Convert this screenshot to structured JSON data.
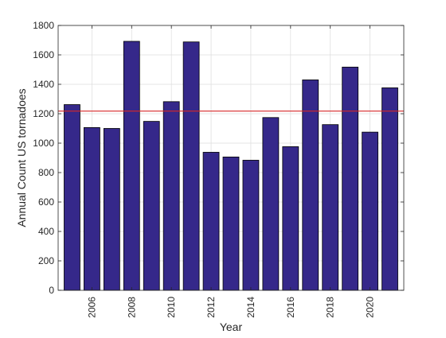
{
  "chart_data": {
    "type": "bar",
    "categories": [
      "2005",
      "2006",
      "2007",
      "2008",
      "2009",
      "2010",
      "2011",
      "2012",
      "2013",
      "2014",
      "2015",
      "2016",
      "2017",
      "2018",
      "2019",
      "2020",
      "2021"
    ],
    "values": [
      1262,
      1106,
      1100,
      1692,
      1148,
      1282,
      1688,
      938,
      906,
      884,
      1174,
      976,
      1430,
      1126,
      1517,
      1075,
      1376
    ],
    "xlabel": "Year",
    "ylabel": "Annual Count US tornadoes",
    "ylim": [
      0,
      1800
    ],
    "xlim": [
      2004.3,
      2021.7
    ],
    "yticks": [
      0,
      200,
      400,
      600,
      800,
      1000,
      1200,
      1400,
      1600,
      1800
    ],
    "xticks": [
      2006,
      2008,
      2010,
      2012,
      2014,
      2016,
      2018,
      2020
    ],
    "reference_line": {
      "y": 1218,
      "color": "#d62728"
    },
    "bar_color": "#35288a",
    "bar_edge_color": "#000000",
    "grid": true,
    "legend": "none"
  }
}
